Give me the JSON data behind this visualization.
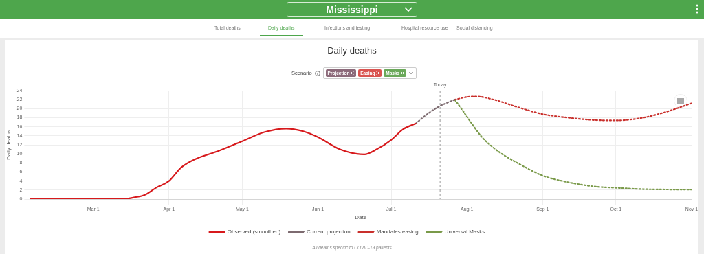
{
  "chart_data": {
    "type": "line",
    "title": "Daily deaths",
    "xlabel": "Date",
    "ylabel": "Daily deaths",
    "annotations": [
      "Mississippi",
      "Total deaths",
      "Daily deaths",
      "Infections and testing",
      "Hospital resource use",
      "Social distancing",
      "Scenario",
      "Projection",
      "Easing",
      "Masks",
      "All deaths specific to COVID-19 patients"
    ],
    "xlim": [
      "--02-04",
      "--11-01"
    ],
    "xticks": [
      {
        "value": "--03-01",
        "label": "Mar 1"
      },
      {
        "value": "--04-01",
        "label": "Apr 1"
      },
      {
        "value": "--05-01",
        "label": "May 1"
      },
      {
        "value": "--06-01",
        "label": "Jun 1"
      },
      {
        "value": "--07-01",
        "label": "Jul 1"
      },
      {
        "value": "--08-01",
        "label": "Aug 1"
      },
      {
        "value": "--09-01",
        "label": "Sep 1"
      },
      {
        "value": "--10-01",
        "label": "Oct 1"
      },
      {
        "value": "--11-01",
        "label": "Nov 1"
      }
    ],
    "ylim": [
      0,
      24
    ],
    "yticks": [
      0,
      2,
      4,
      6,
      8,
      10,
      12,
      14,
      16,
      18,
      20,
      22,
      24
    ],
    "grid": true,
    "legend": "bottom",
    "marker": "none",
    "ref_lines": [
      {
        "axis": "x",
        "value": "--07-21",
        "label": "Today",
        "color": "#999999",
        "line_style": "dashed"
      }
    ],
    "series": [
      {
        "name": "Observed (smoothed)",
        "color": "#d7191c",
        "line_style": "solid",
        "x": [
          "--02-04",
          "--03-13",
          "--03-18",
          "--03-22",
          "--03-27",
          "--04-01",
          "--04-06",
          "--04-12",
          "--04-21",
          "--05-01",
          "--05-10",
          "--05-19",
          "--05-26",
          "--06-01",
          "--06-10",
          "--06-17",
          "--06-20",
          "--06-25",
          "--07-01",
          "--07-06",
          "--07-11"
        ],
        "values": [
          0,
          0,
          0.4,
          0.9,
          2.6,
          4.0,
          7.0,
          8.9,
          10.6,
          12.8,
          14.8,
          15.6,
          15.0,
          13.7,
          11.0,
          10.0,
          9.9,
          11.0,
          13.1,
          15.5,
          16.7
        ]
      },
      {
        "name": "Current projection",
        "color": "#7d6b70",
        "line_style": "dotted",
        "x": [
          "--07-11",
          "--07-16",
          "--07-21",
          "--07-27"
        ],
        "values": [
          16.7,
          18.9,
          20.6,
          22.0
        ]
      },
      {
        "name": "Mandates easing",
        "color": "#c9302c",
        "line_style": "dotted",
        "x": [
          "--07-27",
          "--08-01",
          "--08-05",
          "--08-12",
          "--08-22",
          "--09-01",
          "--09-10",
          "--09-22",
          "--10-01",
          "--10-12",
          "--10-21",
          "--11-01"
        ],
        "values": [
          22.0,
          22.6,
          22.7,
          22.0,
          20.3,
          18.8,
          18.1,
          17.5,
          17.4,
          18.0,
          19.2,
          21.2
        ]
      },
      {
        "name": "Universal Masks",
        "color": "#7a9a4a",
        "line_style": "dotted",
        "x": [
          "--07-27",
          "--07-30",
          "--08-03",
          "--08-07",
          "--08-14",
          "--08-22",
          "--09-01",
          "--09-10",
          "--09-22",
          "--10-01",
          "--10-12",
          "--11-01"
        ],
        "values": [
          22.0,
          19.8,
          16.7,
          13.8,
          10.5,
          7.9,
          5.2,
          3.9,
          2.8,
          2.5,
          2.2,
          2.1
        ]
      }
    ]
  }
}
